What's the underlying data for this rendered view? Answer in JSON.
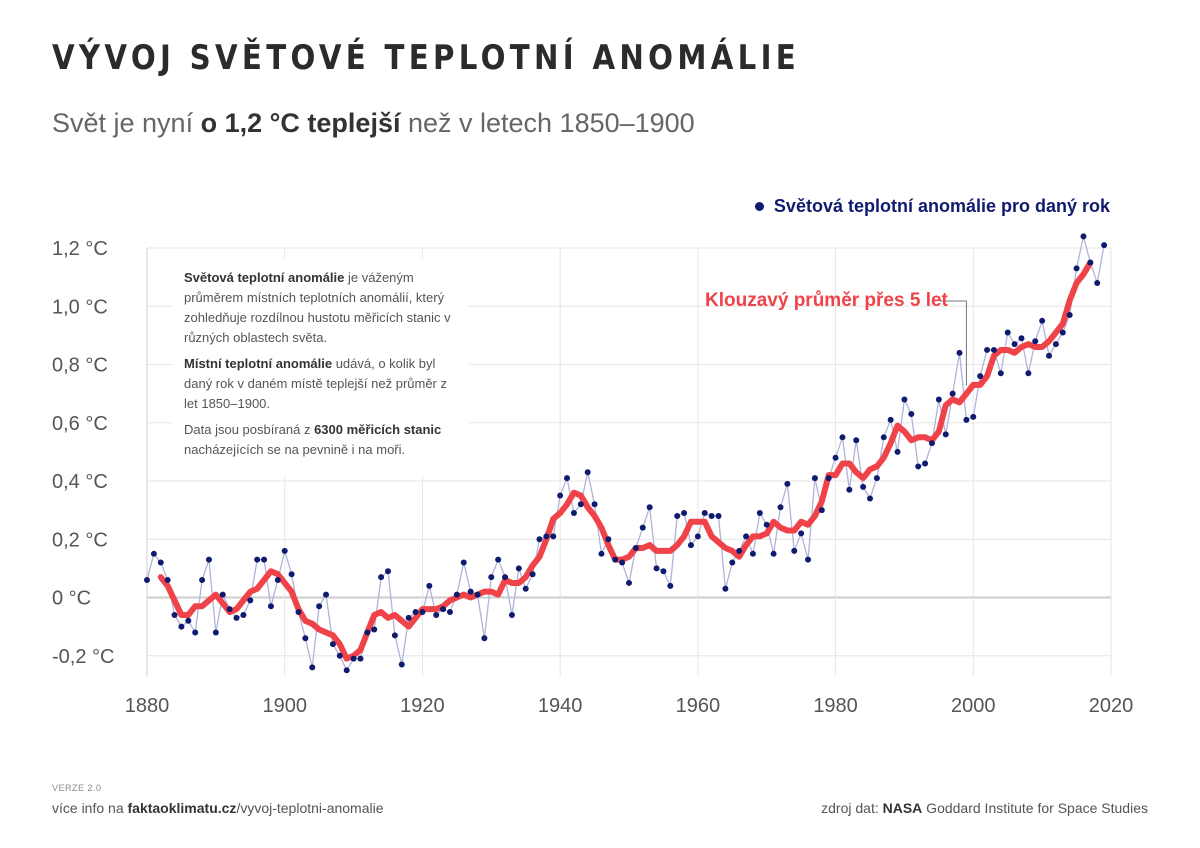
{
  "title": "VÝVOJ SVĚTOVÉ TEPLOTNÍ ANOMÁLIE",
  "subtitle": {
    "before": "Svět je nyní ",
    "bold": "o 1,2 °C teplejší",
    "after": " než v letech 1850–1900"
  },
  "legend": {
    "dots_label": "Světová teplotní anomálie pro daný rok",
    "moving_average_label": "Klouzavý průměr přes 5 let"
  },
  "info": {
    "p1_bold": "Světová teplotní anomálie",
    "p1_text": " je váženým průměrem místních teplotních anomálií, který zohledňuje rozdílnou hustotu měřicích stanic v různých oblastech světa.",
    "p2_bold": "Místní teplotní anomálie",
    "p2_text": " udává, o kolik byl daný rok v daném místě teplejší než průměr z let 1850–1900.",
    "p3_text": "Data jsou posbíraná z ",
    "p3_bold": "6300 měřicích stanic",
    "p3_text2": " nacházejících se na pevnině i na moři."
  },
  "footer": {
    "version": "VERZE 2.0",
    "more_info_prefix": "více info na ",
    "more_info_domain": "faktaoklimatu.cz",
    "more_info_path": "/vyvoj-teplotni-anomalie",
    "source_prefix": "zdroj dat: ",
    "source_bold": "NASA",
    "source_rest": " Goddard Institute for Space Studies"
  },
  "colors": {
    "dots": "#0f1b6e",
    "connector": "#b0b4d8",
    "moving_average": "#ef4349",
    "grid": "#e6e6e6",
    "zero_line": "#cccccc"
  },
  "chart_data": {
    "type": "line",
    "x_start": 1880,
    "xlim": [
      1880,
      2020
    ],
    "ylim": [
      -0.27,
      1.23
    ],
    "x_ticks": [
      1880,
      1900,
      1920,
      1940,
      1960,
      1980,
      2000,
      2020
    ],
    "y_ticks": [
      {
        "value": 1.2,
        "label": "1,2 °C"
      },
      {
        "value": 1.0,
        "label": "1,0 °C"
      },
      {
        "value": 0.8,
        "label": "0,8 °C"
      },
      {
        "value": 0.6,
        "label": "0,6 °C"
      },
      {
        "value": 0.4,
        "label": "0,4 °C"
      },
      {
        "value": 0.2,
        "label": "0,2 °C"
      },
      {
        "value": 0.0,
        "label": "0 °C"
      },
      {
        "value": -0.2,
        "label": "-0,2 °C"
      }
    ],
    "grid": true,
    "legend_position": "top-right",
    "series": [
      {
        "name": "Světová teplotní anomálie pro daný rok",
        "style": "dots",
        "x_start": 1880,
        "values": [
          0.06,
          0.15,
          0.12,
          0.06,
          -0.06,
          -0.1,
          -0.08,
          -0.12,
          0.06,
          0.13,
          -0.12,
          0.01,
          -0.04,
          -0.07,
          -0.06,
          -0.01,
          0.13,
          0.13,
          -0.03,
          0.06,
          0.16,
          0.08,
          -0.05,
          -0.14,
          -0.24,
          -0.03,
          0.01,
          -0.16,
          -0.2,
          -0.25,
          -0.21,
          -0.21,
          -0.12,
          -0.11,
          0.07,
          0.09,
          -0.13,
          -0.23,
          -0.07,
          -0.05,
          -0.05,
          0.04,
          -0.06,
          -0.04,
          -0.05,
          0.01,
          0.12,
          0.02,
          0.01,
          -0.14,
          0.07,
          0.13,
          0.07,
          -0.06,
          0.1,
          0.03,
          0.08,
          0.2,
          0.21,
          0.21,
          0.35,
          0.41,
          0.29,
          0.32,
          0.43,
          0.32,
          0.15,
          0.2,
          0.13,
          0.12,
          0.05,
          0.17,
          0.24,
          0.31,
          0.1,
          0.09,
          0.04,
          0.28,
          0.29,
          0.18,
          0.21,
          0.29,
          0.28,
          0.28,
          0.03,
          0.12,
          0.16,
          0.21,
          0.15,
          0.29,
          0.25,
          0.15,
          0.31,
          0.39,
          0.16,
          0.22,
          0.13,
          0.41,
          0.3,
          0.41,
          0.48,
          0.55,
          0.37,
          0.54,
          0.38,
          0.34,
          0.41,
          0.55,
          0.61,
          0.5,
          0.68,
          0.63,
          0.45,
          0.46,
          0.53,
          0.68,
          0.56,
          0.7,
          0.84,
          0.61,
          0.62,
          0.76,
          0.85,
          0.85,
          0.77,
          0.91,
          0.87,
          0.89,
          0.77,
          0.88,
          0.95,
          0.83,
          0.87,
          0.91,
          0.97,
          1.13,
          1.24,
          1.15,
          1.08,
          1.21
        ]
      },
      {
        "name": "Klouzavý průměr přes 5 let",
        "style": "line",
        "x_start": 1882,
        "values": [
          0.07,
          0.04,
          -0.01,
          -0.06,
          -0.06,
          -0.03,
          -0.03,
          -0.01,
          0.01,
          -0.02,
          -0.05,
          -0.04,
          -0.01,
          0.02,
          0.03,
          0.06,
          0.09,
          0.08,
          0.05,
          0.02,
          -0.04,
          -0.08,
          -0.09,
          -0.11,
          -0.12,
          -0.13,
          -0.16,
          -0.21,
          -0.2,
          -0.18,
          -0.12,
          -0.06,
          -0.05,
          -0.07,
          -0.06,
          -0.08,
          -0.1,
          -0.07,
          -0.04,
          -0.04,
          -0.04,
          -0.03,
          -0.01,
          0.0,
          0.01,
          0.0,
          0.01,
          0.02,
          0.02,
          0.01,
          0.06,
          0.05,
          0.05,
          0.07,
          0.11,
          0.14,
          0.2,
          0.27,
          0.29,
          0.32,
          0.36,
          0.35,
          0.31,
          0.28,
          0.24,
          0.18,
          0.13,
          0.13,
          0.14,
          0.17,
          0.17,
          0.18,
          0.16,
          0.16,
          0.16,
          0.18,
          0.21,
          0.26,
          0.26,
          0.26,
          0.21,
          0.19,
          0.17,
          0.16,
          0.14,
          0.18,
          0.21,
          0.21,
          0.22,
          0.26,
          0.24,
          0.23,
          0.23,
          0.26,
          0.25,
          0.28,
          0.33,
          0.42,
          0.42,
          0.46,
          0.46,
          0.43,
          0.41,
          0.44,
          0.45,
          0.48,
          0.53,
          0.59,
          0.57,
          0.54,
          0.55,
          0.55,
          0.54,
          0.57,
          0.66,
          0.68,
          0.67,
          0.7,
          0.73,
          0.73,
          0.76,
          0.83,
          0.85,
          0.85,
          0.84,
          0.86,
          0.87,
          0.86,
          0.86,
          0.88,
          0.91,
          0.94,
          1.02,
          1.08,
          1.11,
          1.15
        ]
      }
    ]
  }
}
